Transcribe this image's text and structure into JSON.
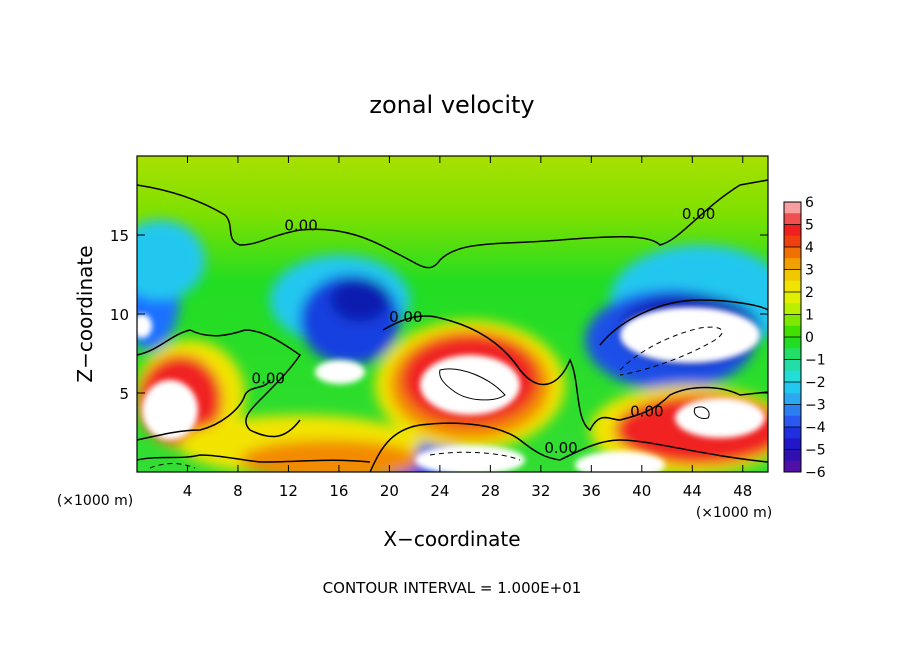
{
  "chart_data": {
    "type": "heatmap",
    "title": "zonal velocity",
    "xlabel": "X−coordinate",
    "ylabel": "Z−coordinate",
    "x_unit": "(×1000 m)",
    "z_unit": "(×1000 m)",
    "footer": "CONTOUR INTERVAL = 1.000E+01",
    "xlim": [
      0,
      50
    ],
    "ylim": [
      0,
      20
    ],
    "x_ticks": [
      4,
      8,
      12,
      16,
      20,
      24,
      28,
      32,
      36,
      40,
      44,
      48
    ],
    "x_tick_labels": [
      "4",
      "8",
      "12",
      "16",
      "20",
      "24",
      "28",
      "32",
      "36",
      "40",
      "44",
      "48"
    ],
    "y_ticks": [
      5,
      10,
      15
    ],
    "y_tick_labels": [
      "5",
      "10",
      "15"
    ],
    "colorbar": {
      "min": -6,
      "max": 6,
      "ticks": [
        6,
        5,
        4,
        3,
        2,
        1,
        0,
        -1,
        -2,
        -3,
        -4,
        -5,
        -6
      ],
      "tick_labels": [
        "6",
        "5",
        "4",
        "3",
        "2",
        "1",
        "0",
        "−1",
        "−2",
        "−3",
        "−4",
        "−5",
        "−6"
      ]
    },
    "contour_labels": [
      {
        "text": "0.00",
        "x": 13,
        "z": 15.3
      },
      {
        "text": "0.00",
        "x": 44.5,
        "z": 16.0
      },
      {
        "text": "0.00",
        "x": 21.3,
        "z": 9.5
      },
      {
        "text": "0.00",
        "x": 10.4,
        "z": 5.6
      },
      {
        "text": "0.00",
        "x": 40.4,
        "z": 3.5
      },
      {
        "text": "0.00",
        "x": 33.6,
        "z": 1.2
      }
    ]
  }
}
